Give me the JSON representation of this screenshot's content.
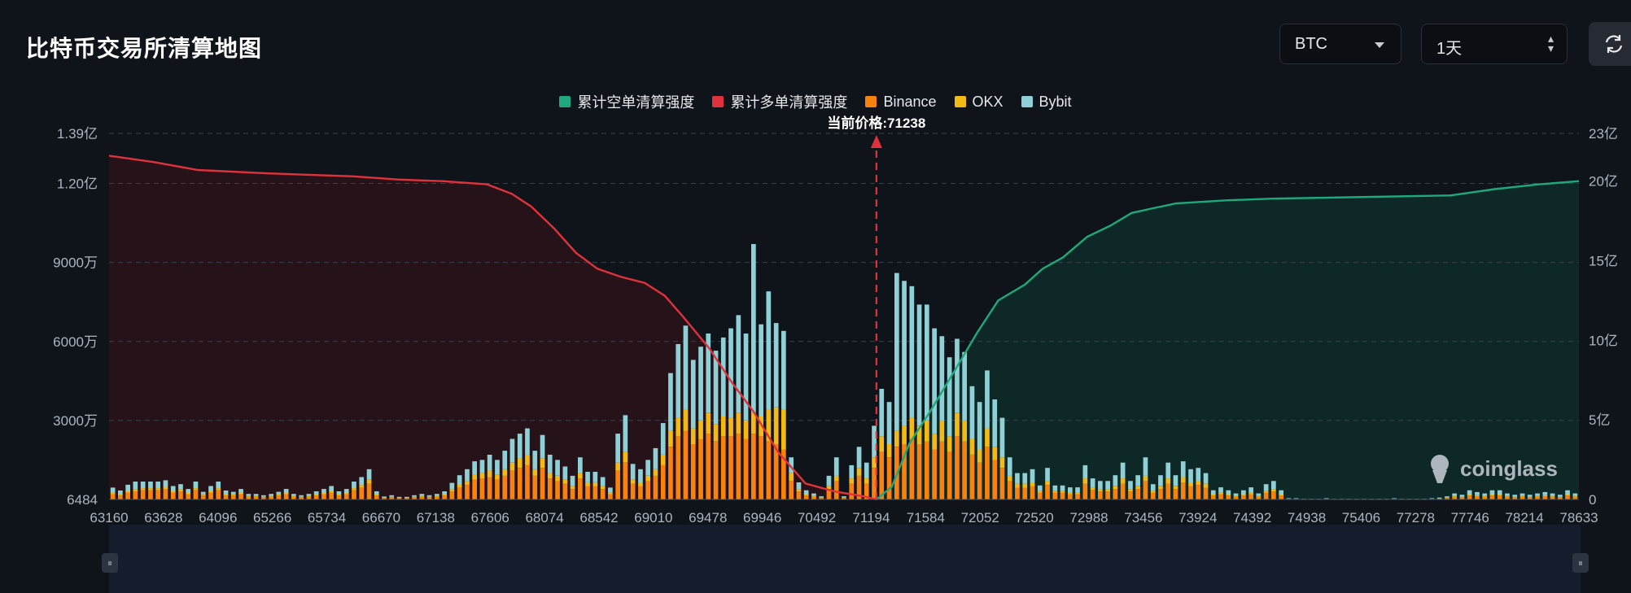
{
  "header": {
    "title": "比特币交易所清算地图",
    "symbol": "BTC",
    "range": "1天"
  },
  "icons": {
    "refresh": "refresh-icon",
    "dropdown": "chevron-down-icon",
    "updown": "up-down-icon",
    "logo": "coinglass-logo-icon"
  },
  "watermark": "coinglass",
  "colors": {
    "short_cum": "#1fa87d",
    "long_cum": "#e0323c",
    "binance": "#f7820d",
    "okx": "#f3ba15",
    "bybit": "#8ed0d6",
    "background": "#0f131a"
  },
  "chart_data": {
    "type": "bar",
    "legend": [
      "累计空单清算强度",
      "累计多单清算强度",
      "Binance",
      "OKX",
      "Bybit"
    ],
    "legend_position": "top-center",
    "current_price_label": "当前价格:71238",
    "current_price": 71238,
    "x_tick_labels": [
      "63160",
      "63628",
      "64096",
      "65266",
      "65734",
      "66670",
      "67138",
      "67606",
      "68074",
      "68542",
      "69010",
      "69478",
      "69946",
      "70492",
      "71194",
      "71584",
      "72052",
      "72520",
      "72988",
      "73456",
      "73924",
      "74392",
      "74938",
      "75406",
      "77278",
      "77746",
      "78214",
      "78633"
    ],
    "y_left_tick_labels": [
      "6484",
      "3000万",
      "6000万",
      "9000万",
      "1.20亿",
      "1.39亿"
    ],
    "y_right_tick_labels": [
      "0",
      "5亿",
      "10亿",
      "15亿",
      "20亿",
      "23亿"
    ],
    "y_left_range": [
      6484,
      139000000
    ],
    "y_right_range": [
      0,
      2300000000
    ],
    "grid": true,
    "price_range": [
      63160,
      78633
    ],
    "stacked_bars": {
      "unit": "USD",
      "binance": [
        2000000.0,
        1500000.0,
        2500000.0,
        3000000.0,
        3500000.0,
        3500000.0,
        3500000.0,
        3800000.0,
        2500000.0,
        3000000.0,
        2000000.0,
        3500000.0,
        1500000.0,
        2500000.0,
        3500000.0,
        1500000.0,
        1500000.0,
        2000000.0,
        1000000.0,
        1000000.0,
        800000.0,
        1000000.0,
        1500000.0,
        2000000.0,
        1000000.0,
        800000.0,
        1000000.0,
        1500000.0,
        2000000.0,
        2500000.0,
        1500000.0,
        2000000.0,
        3500000.0,
        4500000.0,
        6000000.0,
        1500000.0,
        500000.0,
        800000.0,
        500000.0,
        500000.0,
        800000.0,
        1000000.0,
        800000.0,
        1000000.0,
        1500000.0,
        3000000.0,
        4500000.0,
        5500000.0,
        7500000.0,
        8000000.0,
        8500000.0,
        7500000.0,
        9000000.0,
        11000000.0,
        12000000.0,
        13000000.0,
        9000000.0,
        12000000.0,
        8000000.0,
        7000000.0,
        6000000.0,
        4000000.0,
        8000000.0,
        5000000.0,
        5000000.0,
        4000000.0,
        2000000.0,
        11000000.0,
        14000000.0,
        6000000.0,
        5000000.0,
        7000000.0,
        9000000.0,
        13000000.0,
        20000000.0,
        24000000.0,
        26000000.0,
        21000000.0,
        23000000.0,
        25000000.0,
        22000000.0,
        24000000.0,
        24000000.0,
        25000000.0,
        23000000.0,
        25000000.0,
        24000000.0,
        22000000.0,
        21000000.0,
        19000000.0,
        7000000.0,
        3000000.0,
        1500000.0,
        1000000.0,
        500000.0,
        4000000.0,
        7000000.0,
        500000.0,
        6000000.0,
        9000000.0,
        6000000.0,
        12000000.0,
        18000000.0,
        16000000.0,
        20000000.0,
        21000000.0,
        23000000.0,
        21000000.0,
        22000000.0,
        19000000.0,
        22000000.0,
        18000000.0,
        24000000.0,
        22000000.0,
        17000000.0,
        14000000.0,
        20000000.0,
        15000000.0,
        12000000.0,
        7000000.0,
        4500000.0,
        4500000.0,
        5000000.0,
        2500000.0,
        5500000.0,
        2500000.0,
        2500000.0,
        2000000.0,
        2000000.0,
        6000000.0,
        3500000.0,
        3000000.0,
        3000000.0,
        4000000.0,
        6000000.0,
        3000000.0,
        4000000.0,
        7000000.0,
        2500000.0,
        4000000.0,
        6000000.0,
        4000000.0,
        6500000.0,
        5000000.0,
        5500000.0,
        4500000.0,
        1500000.0,
        2000000.0,
        1500000.0,
        1000000.0,
        1500000.0,
        2000000.0,
        1000000.0,
        2500000.0,
        3000000.0,
        1500000.0,
        200000.0,
        200000.0,
        100000.0,
        100000.0,
        100000.0,
        200000.0,
        100000.0,
        100000.0,
        100000.0,
        100000.0,
        100000.0,
        100000.0,
        100000.0,
        100000.0,
        200000.0,
        100000.0,
        100000.0,
        100000.0,
        100000.0,
        200000.0,
        300000.0,
        500000.0,
        1000000.0,
        800000.0,
        1500000.0,
        1200000.0,
        1000000.0,
        1500000.0,
        1500000.0,
        1000000.0,
        800000.0,
        1000000.0,
        800000.0,
        1000000.0,
        1200000.0,
        1000000.0,
        800000.0,
        1500000.0,
        1000000.0
      ],
      "okx": [
        500000.0,
        400000.0,
        600000.0,
        800000.0,
        800000.0,
        800000.0,
        800000.0,
        1000000.0,
        600000.0,
        800000.0,
        500000.0,
        800000.0,
        400000.0,
        600000.0,
        800000.0,
        400000.0,
        400000.0,
        500000.0,
        300000.0,
        300000.0,
        200000.0,
        300000.0,
        400000.0,
        500000.0,
        300000.0,
        200000.0,
        300000.0,
        400000.0,
        500000.0,
        600000.0,
        400000.0,
        500000.0,
        800000.0,
        1000000.0,
        1500000.0,
        400000.0,
        100000.0,
        200000.0,
        100000.0,
        100000.0,
        200000.0,
        300000.0,
        200000.0,
        300000.0,
        400000.0,
        800000.0,
        1200000.0,
        1500000.0,
        2000000.0,
        2000000.0,
        2500000.0,
        2000000.0,
        2500000.0,
        3000000.0,
        3500000.0,
        4000000.0,
        2500000.0,
        3500000.0,
        2000000.0,
        2000000.0,
        1500000.0,
        1000000.0,
        2000000.0,
        1500000.0,
        1500000.0,
        1000000.0,
        500000.0,
        3000000.0,
        4000000.0,
        1500000.0,
        1500000.0,
        2000000.0,
        2500000.0,
        4000000.0,
        6000000.0,
        7000000.0,
        8000000.0,
        6000000.0,
        7000000.0,
        8000000.0,
        6500000.0,
        7500000.0,
        7000000.0,
        8000000.0,
        7000000.0,
        8000000.0,
        7500000.0,
        12000000.0,
        14000000.0,
        15000000.0,
        3000000.0,
        1000000.0,
        500000.0,
        300000.0,
        200000.0,
        1000000.0,
        2000000.0,
        200000.0,
        2000000.0,
        3000000.0,
        2000000.0,
        4000000.0,
        6000000.0,
        5000000.0,
        6000000.0,
        7000000.0,
        8000000.0,
        7000000.0,
        8000000.0,
        6000000.0,
        8000000.0,
        6000000.0,
        9000000.0,
        8000000.0,
        6000000.0,
        5000000.0,
        7000000.0,
        5000000.0,
        4000000.0,
        2000000.0,
        1500000.0,
        1500000.0,
        1500000.0,
        800000.0,
        1500000.0,
        800000.0,
        800000.0,
        600000.0,
        600000.0,
        2000000.0,
        1000000.0,
        1000000.0,
        1000000.0,
        1200000.0,
        2000000.0,
        1000000.0,
        1200000.0,
        2000000.0,
        800000.0,
        1200000.0,
        2000000.0,
        1200000.0,
        2000000.0,
        1500000.0,
        1500000.0,
        1500000.0,
        500000.0,
        600000.0,
        500000.0,
        300000.0,
        500000.0,
        600000.0,
        300000.0,
        800000.0,
        1000000.0,
        500000.0,
        50000.0,
        50000.0,
        30000.0,
        30000.0,
        30000.0,
        50000.0,
        30000.0,
        30000.0,
        30000.0,
        30000.0,
        30000.0,
        30000.0,
        30000.0,
        30000.0,
        50000.0,
        30000.0,
        30000.0,
        30000.0,
        30000.0,
        50000.0,
        100000.0,
        200000.0,
        300000.0,
        200000.0,
        500000.0,
        400000.0,
        300000.0,
        500000.0,
        500000.0,
        300000.0,
        200000.0,
        300000.0,
        200000.0,
        300000.0,
        400000.0,
        300000.0,
        200000.0,
        500000.0,
        300000.0
      ],
      "bybit": [
        2000000.0,
        1500000.0,
        2500000.0,
        3000000.0,
        2500000.0,
        2500000.0,
        2500000.0,
        2500000.0,
        2000000.0,
        2000000.0,
        1500000.0,
        2500000.0,
        1000000.0,
        2000000.0,
        2500000.0,
        1500000.0,
        1000000.0,
        1500000.0,
        800000.0,
        800000.0,
        600000.0,
        800000.0,
        1000000.0,
        1500000.0,
        800000.0,
        600000.0,
        800000.0,
        1200000.0,
        1500000.0,
        2000000.0,
        1200000.0,
        1500000.0,
        2500000.0,
        3000000.0,
        4000000.0,
        1200000.0,
        500000.0,
        600000.0,
        400000.0,
        400000.0,
        600000.0,
        800000.0,
        600000.0,
        800000.0,
        1200000.0,
        2500000.0,
        3500000.0,
        4500000.0,
        5000000.0,
        5000000.0,
        6000000.0,
        5500000.0,
        7000000.0,
        9000000.0,
        9500000.0,
        10000000.0,
        7000000.0,
        9000000.0,
        7000000.0,
        6000000.0,
        5000000.0,
        4000000.0,
        6000000.0,
        4000000.0,
        4000000.0,
        3500000.0,
        2000000.0,
        11000000.0,
        14000000.0,
        6000000.0,
        5000000.0,
        6000000.0,
        8000000.0,
        12000000.0,
        22000000.0,
        28000000.0,
        32000000.0,
        26000000.0,
        28000000.0,
        30000000.0,
        28000000.0,
        30000000.0,
        34000000.0,
        37000000.0,
        33000000.0,
        64000000.0,
        35000000.0,
        45000000.0,
        32000000.0,
        30000000.0,
        6000000.0,
        2500000.0,
        1500000.0,
        1000000.0,
        500000.0,
        4000000.0,
        7000000.0,
        500000.0,
        5000000.0,
        8000000.0,
        6000000.0,
        12000000.0,
        18000000.0,
        16000000.0,
        60000000.0,
        55000000.0,
        50000000.0,
        46000000.0,
        44000000.0,
        40000000.0,
        32000000.0,
        30000000.0,
        28000000.0,
        26000000.0,
        20000000.0,
        18000000.0,
        22000000.0,
        18000000.0,
        15000000.0,
        7000000.0,
        4000000.0,
        4000000.0,
        5000000.0,
        2000000.0,
        5000000.0,
        2000000.0,
        2000000.0,
        2000000.0,
        2000000.0,
        5000000.0,
        3500000.0,
        3000000.0,
        3000000.0,
        4000000.0,
        6000000.0,
        3000000.0,
        4000000.0,
        7000000.0,
        2500000.0,
        4000000.0,
        6000000.0,
        4000000.0,
        6000000.0,
        5000000.0,
        5000000.0,
        4000000.0,
        1500000.0,
        2000000.0,
        1500000.0,
        1000000.0,
        1500000.0,
        2000000.0,
        1000000.0,
        2500000.0,
        3000000.0,
        1500000.0,
        200000.0,
        200000.0,
        100000.0,
        100000.0,
        100000.0,
        200000.0,
        100000.0,
        100000.0,
        100000.0,
        100000.0,
        100000.0,
        100000.0,
        100000.0,
        100000.0,
        200000.0,
        100000.0,
        100000.0,
        100000.0,
        100000.0,
        200000.0,
        300000.0,
        500000.0,
        1000000.0,
        800000.0,
        1500000.0,
        1200000.0,
        1000000.0,
        1500000.0,
        1500000.0,
        1000000.0,
        800000.0,
        1000000.0,
        800000.0,
        1000000.0,
        1200000.0,
        1000000.0,
        800000.0,
        1500000.0,
        1000000.0
      ]
    },
    "cumulative_long_line": {
      "unit": "USD",
      "x": [
        63160,
        63628,
        64096,
        64800,
        65266,
        65734,
        66200,
        66670,
        67138,
        67400,
        67606,
        67850,
        68074,
        68300,
        68542,
        68800,
        69010,
        69200,
        69478,
        69700,
        69946,
        70200,
        70492,
        70800,
        71100,
        71238
      ],
      "y": [
        2160000000.0,
        2120000000.0,
        2070000000.0,
        2050000000.0,
        2040000000.0,
        2030000000.0,
        2010000000.0,
        2000000000.0,
        1980000000.0,
        1920000000.0,
        1840000000.0,
        1700000000.0,
        1550000000.0,
        1450000000.0,
        1400000000.0,
        1360000000.0,
        1280000000.0,
        1150000000.0,
        950000000.0,
        750000000.0,
        550000000.0,
        300000000.0,
        100000000.0,
        50000000.0,
        20000000.0,
        0.0
      ]
    },
    "cumulative_short_line": {
      "unit": "USD",
      "x": [
        71238,
        71400,
        71584,
        71800,
        72052,
        72300,
        72520,
        72800,
        72988,
        73200,
        73456,
        73700,
        73924,
        74150,
        74392,
        74938,
        75406,
        77278,
        77746,
        78214,
        78633
      ],
      "y": [
        0.0,
        80000000.0,
        350000000.0,
        550000000.0,
        800000000.0,
        1050000000.0,
        1250000000.0,
        1350000000.0,
        1450000000.0,
        1520000000.0,
        1650000000.0,
        1720000000.0,
        1800000000.0,
        1830000000.0,
        1860000000.0,
        1880000000.0,
        1890000000.0,
        1910000000.0,
        1950000000.0,
        1980000000.0,
        2000000000.0
      ]
    }
  }
}
